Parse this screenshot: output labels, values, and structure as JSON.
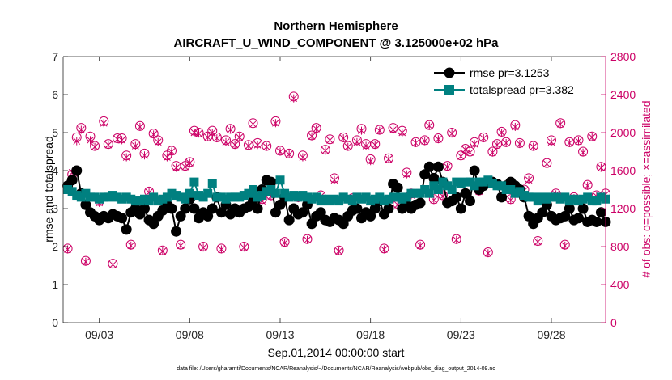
{
  "chart_data": {
    "type": "line",
    "title": "Northern Hemisphere",
    "subtitle": "AIRCRAFT_U_WIND_COMPONENT @ 3.125000e+02 hPa",
    "xlabel": "Sep.01,2014 00:00:00 start",
    "ylabel_left": "rmse and totalspread",
    "ylabel_right": "# of obs: o=possible; ×=assimilated",
    "footnote": "data file: /Users/gharamti/Documents/NCAR/Reanalysis/~/Documents/NCAR/Reanalysis/webpub/obs_diag_output_2014-09.nc",
    "xlim": [
      1,
      31
    ],
    "x_ticks": [
      3,
      8,
      13,
      18,
      23,
      28
    ],
    "x_tick_labels": [
      "09/03",
      "09/08",
      "09/13",
      "09/18",
      "09/23",
      "09/28"
    ],
    "ylim_left": [
      0,
      7
    ],
    "y_ticks_left": [
      "0",
      "1",
      "2",
      "3",
      "4",
      "5",
      "6",
      "7"
    ],
    "ylim_right": [
      0,
      2800
    ],
    "y_ticks_right": [
      "0",
      "400",
      "800",
      "1200",
      "1600",
      "2000",
      "2400",
      "2800"
    ],
    "legend": [
      {
        "label": "rmse pr=3.1253",
        "color": "#000000",
        "marker": "circle"
      },
      {
        "label": "totalspread pr=3.382",
        "color": "#008080",
        "marker": "square"
      }
    ],
    "series": [
      {
        "name": "rmse",
        "axis": "left",
        "color": "#000000",
        "x_start": 1.25,
        "x_step": 0.25,
        "values": [
          3.6,
          3.75,
          4.0,
          3.4,
          3.1,
          2.9,
          2.8,
          2.7,
          2.8,
          2.75,
          2.85,
          2.8,
          2.75,
          2.45,
          2.9,
          3.0,
          2.85,
          3.0,
          2.7,
          2.6,
          2.8,
          2.95,
          3.1,
          3.0,
          2.4,
          2.8,
          3.0,
          3.25,
          3.0,
          2.75,
          2.9,
          2.8,
          3.0,
          3.3,
          2.9,
          3.1,
          2.85,
          3.0,
          2.9,
          3.0,
          3.05,
          3.2,
          3.0,
          3.5,
          3.75,
          3.7,
          2.9,
          3.1,
          3.3,
          2.7,
          3.0,
          2.85,
          2.9,
          3.1,
          2.6,
          2.8,
          2.9,
          2.7,
          2.65,
          2.75,
          2.7,
          2.6,
          2.8,
          2.95,
          3.0,
          2.75,
          2.9,
          2.8,
          3.0,
          3.2,
          2.85,
          3.0,
          3.65,
          3.55,
          3.0,
          3.1,
          3.0,
          3.1,
          3.15,
          3.9,
          4.1,
          3.8,
          4.1,
          3.7,
          3.15,
          3.2,
          3.3,
          3.0,
          3.4,
          3.2,
          4.0,
          3.5,
          3.6,
          3.7,
          3.7,
          3.65,
          3.3,
          3.6,
          3.7,
          3.6,
          3.5,
          3.3,
          2.8,
          2.6,
          2.75,
          2.9,
          3.1,
          2.8,
          2.7,
          2.75,
          2.8,
          3.0,
          2.7,
          2.75,
          3.0,
          2.65,
          2.7,
          2.65,
          2.9,
          2.65
        ]
      },
      {
        "name": "totalspread",
        "axis": "left",
        "color": "#008080",
        "x_start": 1.25,
        "x_step": 0.25,
        "values": [
          3.5,
          3.45,
          3.35,
          3.3,
          3.4,
          3.3,
          3.3,
          3.25,
          3.3,
          3.3,
          3.35,
          3.3,
          3.25,
          3.3,
          3.25,
          3.2,
          3.2,
          3.25,
          3.2,
          3.3,
          3.2,
          3.25,
          3.3,
          3.4,
          3.35,
          3.3,
          3.25,
          3.4,
          3.7,
          3.35,
          3.3,
          3.4,
          3.65,
          3.3,
          3.3,
          3.25,
          3.3,
          3.3,
          3.3,
          3.35,
          3.4,
          3.5,
          3.3,
          3.35,
          3.45,
          3.5,
          3.4,
          3.75,
          3.4,
          3.3,
          3.35,
          3.3,
          3.35,
          3.3,
          3.25,
          3.3,
          3.2,
          3.25,
          3.2,
          3.25,
          3.2,
          3.3,
          3.25,
          3.2,
          3.3,
          3.25,
          3.3,
          3.2,
          3.25,
          3.3,
          3.2,
          3.25,
          3.3,
          3.3,
          3.25,
          3.3,
          3.4,
          3.4,
          3.4,
          3.5,
          3.4,
          3.6,
          3.5,
          3.7,
          3.6,
          3.5,
          3.7,
          3.65,
          3.7,
          3.7,
          3.6,
          3.7,
          3.7,
          3.75,
          3.65,
          3.6,
          3.6,
          3.5,
          3.5,
          3.4,
          3.45,
          3.35,
          3.3,
          3.3,
          3.2,
          3.3,
          3.25,
          3.3,
          3.3,
          3.25,
          3.3,
          3.2,
          3.25,
          3.2,
          3.25,
          3.3,
          3.2,
          3.2,
          3.3,
          3.25
        ]
      },
      {
        "name": "obs possible",
        "axis": "right",
        "color": "#cc0066",
        "marker": "circle-open",
        "x_start": 1.25,
        "x_step": 0.25,
        "values": [
          780,
          1560,
          1950,
          2050,
          650,
          1960,
          1860,
          1280,
          2120,
          1880,
          620,
          1940,
          1940,
          1760,
          820,
          1880,
          2070,
          1780,
          1380,
          1990,
          1920,
          760,
          1760,
          1810,
          1650,
          820,
          1650,
          1690,
          2020,
          2000,
          800,
          1960,
          2020,
          1950,
          780,
          1920,
          2040,
          1880,
          1960,
          800,
          1870,
          2100,
          1890,
          1300,
          1860,
          1340,
          2120,
          1810,
          850,
          1780,
          2380,
          1320,
          1760,
          880,
          1970,
          2050,
          1340,
          1820,
          1930,
          1520,
          760,
          1950,
          1860,
          1310,
          1920,
          2040,
          1880,
          1720,
          1880,
          2030,
          780,
          1730,
          2050,
          1250,
          2020,
          1580,
          1360,
          1900,
          820,
          1920,
          2080,
          1300,
          1940,
          1340,
          1650,
          2000,
          880,
          1760,
          1830,
          1800,
          1900,
          1390,
          1950,
          740,
          1800,
          1880,
          2010,
          1900,
          1300,
          2080,
          1890,
          1400,
          1520,
          1860,
          860,
          1300,
          1680,
          1920,
          1360,
          2100,
          820,
          1900,
          1320,
          1920,
          1800,
          1450,
          1960,
          1340,
          1640,
          1360
        ]
      },
      {
        "name": "obs assimilated",
        "axis": "right",
        "color": "#cc0066",
        "marker": "x",
        "x_start": 1.25,
        "x_step": 0.25,
        "values": [
          770,
          1580,
          1910,
          2030,
          640,
          1920,
          1850,
          1260,
          2100,
          1870,
          610,
          1930,
          1920,
          1740,
          810,
          1860,
          2060,
          1760,
          1370,
          1980,
          1900,
          750,
          1740,
          1800,
          1630,
          810,
          1640,
          1680,
          2000,
          1990,
          790,
          1950,
          2000,
          1940,
          770,
          1900,
          2030,
          1870,
          1950,
          790,
          1860,
          2090,
          1870,
          1280,
          1850,
          1330,
          2100,
          1800,
          840,
          1770,
          2360,
          1310,
          1740,
          870,
          1960,
          2040,
          1330,
          1810,
          1920,
          1500,
          750,
          1940,
          1850,
          1300,
          1900,
          2020,
          1860,
          1700,
          1870,
          2020,
          770,
          1720,
          2030,
          1240,
          2000,
          1560,
          1340,
          1890,
          810,
          1910,
          2070,
          1290,
          1930,
          1330,
          1640,
          1990,
          870,
          1750,
          1820,
          1790,
          1880,
          1380,
          1940,
          730,
          1790,
          1870,
          2000,
          1890,
          1290,
          2060,
          1880,
          1390,
          1500,
          1850,
          850,
          1290,
          1670,
          1900,
          1350,
          2090,
          810,
          1890,
          1310,
          1910,
          1790,
          1440,
          1950,
          1330,
          1630,
          1350
        ]
      }
    ]
  }
}
